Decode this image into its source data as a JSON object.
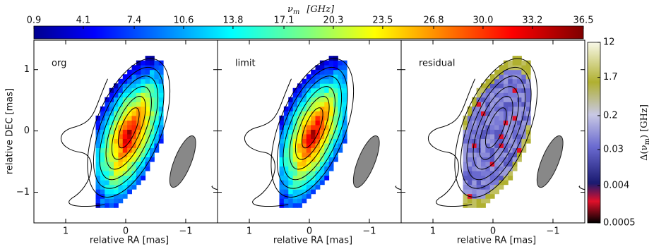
{
  "chart_data": {
    "type": "map-panels",
    "panels": [
      "org",
      "limit",
      "residual"
    ],
    "x_label": "relative RA [mas]",
    "y_label": "relative DEC [mas]",
    "xlim": [
      1.53,
      -1.53
    ],
    "xticks": [
      1,
      0,
      {
        "value": -1,
        "label": "−1"
      }
    ],
    "ylim": [
      -1.5,
      1.48
    ],
    "yticks": [
      {
        "value": -1,
        "label": "−1"
      },
      0,
      1
    ],
    "top_colorbar": {
      "label_symbol": "ν",
      "label_sub": "m",
      "label_unit": "[GHz]",
      "lim": [
        0.9,
        36.5
      ],
      "ticks": [
        0.9,
        4.1,
        7.4,
        10.6,
        13.8,
        17.1,
        20.3,
        23.5,
        26.8,
        {
          "value": 30,
          "label": "30.0"
        },
        33.2,
        36.5
      ],
      "colormap": "jet"
    },
    "right_colorbar": {
      "label_prefix": "Δ(ν",
      "label_sub": "m",
      "label_unit": ") [GHz]",
      "lim": [
        0.0005,
        12
      ],
      "log": true,
      "ticks": [
        0.0005,
        0.004,
        0.03,
        0.2,
        1.7,
        12
      ]
    }
  }
}
